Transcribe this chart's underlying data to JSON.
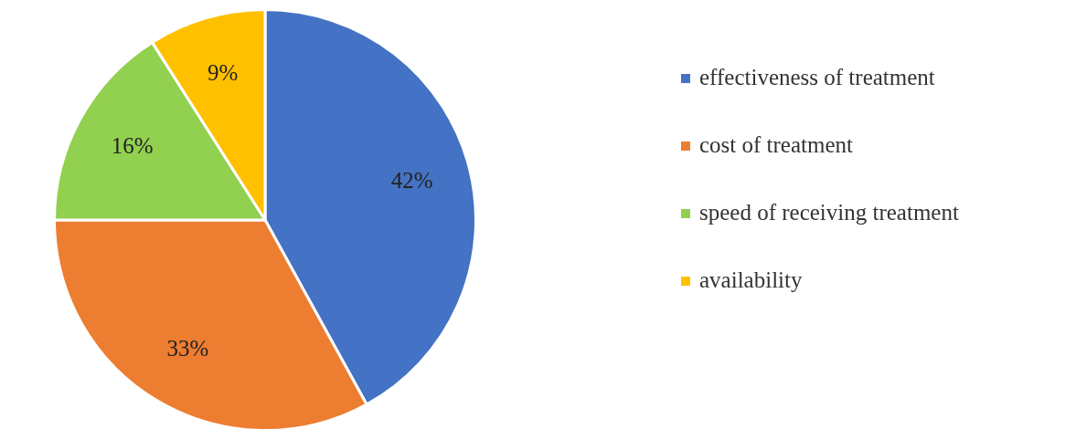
{
  "chart_data": {
    "type": "pie",
    "categories": [
      "effectiveness of treatment",
      "cost of treatment",
      "speed of receiving treatment",
      "availability"
    ],
    "values": [
      42,
      33,
      16,
      9
    ],
    "colors": [
      "#4472c4",
      "#ed7d31",
      "#92d050",
      "#ffc000"
    ],
    "value_labels": [
      "42%",
      "33%",
      "16%",
      "9%"
    ],
    "legend": "right"
  }
}
